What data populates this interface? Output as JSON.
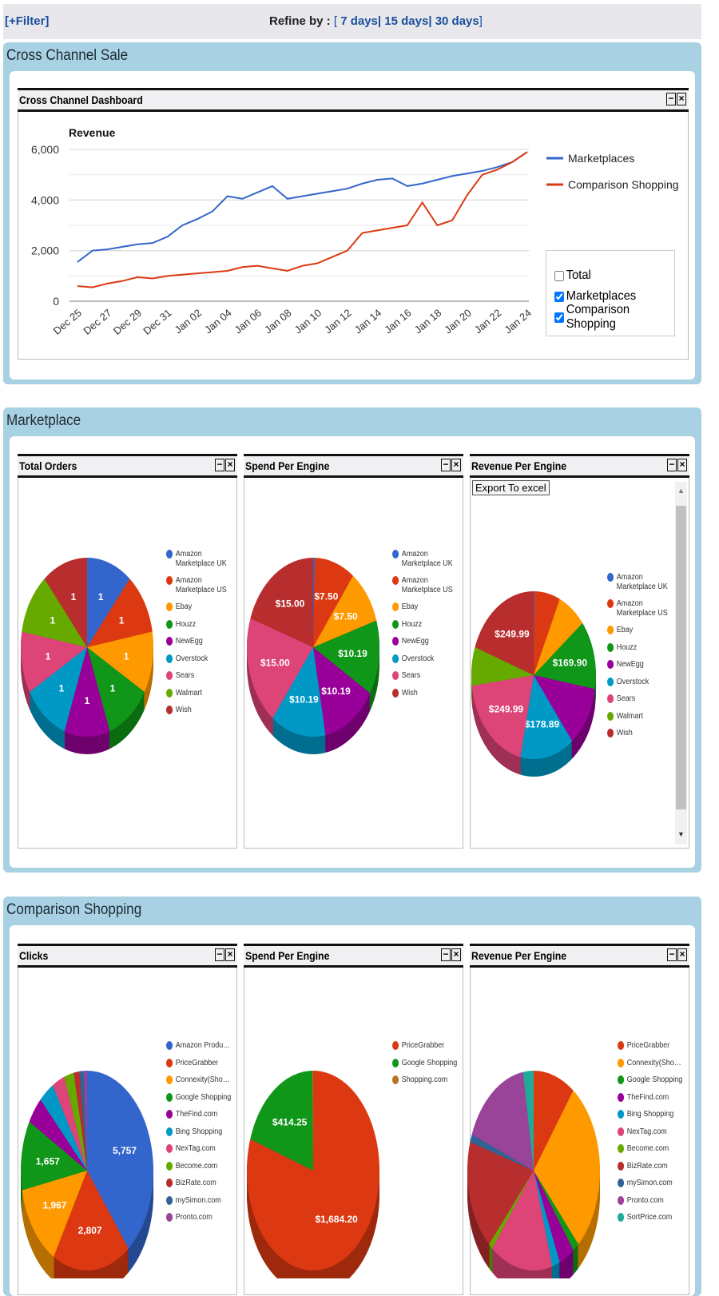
{
  "topbar": {
    "filter_label": "[+Filter]",
    "refine_label": "Refine by :",
    "bracket_open": "[",
    "bracket_close": "]",
    "sep": "|",
    "options": [
      "7 days",
      "15 days",
      "30 days"
    ]
  },
  "sections": {
    "cross_channel": {
      "title": "Cross Channel Sale",
      "widget_title": "Cross Channel Dashboard"
    },
    "marketplace": {
      "title": "Marketplace",
      "widgets": [
        "Total Orders",
        "Spend Per Engine",
        "Revenue Per Engine"
      ],
      "export_label": "Export To excel"
    },
    "comparison": {
      "title": "Comparison Shopping",
      "widgets": [
        "Clicks",
        "Spend Per Engine",
        "Revenue Per Engine"
      ]
    }
  },
  "widget_buttons": {
    "minimize": "−",
    "close": "×"
  },
  "line_toggles": [
    {
      "label": "Total",
      "checked": false
    },
    {
      "label": "Marketplaces",
      "checked": true
    },
    {
      "label": "Comparison Shopping",
      "checked": true
    }
  ],
  "chart_data": [
    {
      "type": "line",
      "title": "Revenue",
      "ylabel": "",
      "ylim": [
        0,
        6000
      ],
      "yticks": [
        "0",
        "2,000",
        "4,000",
        "6,000"
      ],
      "xticks": [
        "Dec 25",
        "Dec 27",
        "Dec 29",
        "Dec 31",
        "Jan 02",
        "Jan 04",
        "Jan 06",
        "Jan 08",
        "Jan 10",
        "Jan 12",
        "Jan 14",
        "Jan 16",
        "Jan 18",
        "Jan 20",
        "Jan 22",
        "Jan 24"
      ],
      "x": [
        "Dec 25",
        "Dec 26",
        "Dec 27",
        "Dec 28",
        "Dec 29",
        "Dec 30",
        "Dec 31",
        "Jan 01",
        "Jan 02",
        "Jan 03",
        "Jan 04",
        "Jan 05",
        "Jan 06",
        "Jan 07",
        "Jan 08",
        "Jan 09",
        "Jan 10",
        "Jan 11",
        "Jan 12",
        "Jan 13",
        "Jan 14",
        "Jan 15",
        "Jan 16",
        "Jan 17",
        "Jan 18",
        "Jan 19",
        "Jan 20",
        "Jan 21",
        "Jan 22",
        "Jan 23",
        "Jan 24"
      ],
      "legend_position": "right",
      "grid": true,
      "series": [
        {
          "name": "Marketplaces",
          "color": "#3366cc",
          "values": [
            1550,
            2000,
            2050,
            2150,
            2250,
            2300,
            2550,
            3000,
            3250,
            3550,
            4150,
            4050,
            4300,
            4550,
            4050,
            4150,
            4250,
            4350,
            4450,
            4650,
            4800,
            4850,
            4550,
            4650,
            4800,
            4950,
            5050,
            5150,
            5300,
            5500,
            5900
          ]
        },
        {
          "name": "Comparison Shopping",
          "color": "#dc3912",
          "values": [
            600,
            550,
            700,
            800,
            950,
            900,
            1000,
            1050,
            1100,
            1150,
            1200,
            1350,
            1400,
            1300,
            1200,
            1400,
            1500,
            1750,
            2000,
            2700,
            2800,
            2900,
            3000,
            3900,
            3000,
            3200,
            4200,
            5000,
            5200,
            5500,
            5900
          ]
        }
      ]
    },
    {
      "type": "pie",
      "title": "Total Orders",
      "slices": [
        {
          "name": "Amazon Marketplace UK",
          "value": 1,
          "color": "#3366cc",
          "label": "1"
        },
        {
          "name": "Amazon Marketplace US",
          "value": 1,
          "color": "#dc3912",
          "label": "1"
        },
        {
          "name": "Ebay",
          "value": 1,
          "color": "#ff9900",
          "label": "1"
        },
        {
          "name": "Houzz",
          "value": 1,
          "color": "#109618",
          "label": "1"
        },
        {
          "name": "NewEgg",
          "value": 1,
          "color": "#990099",
          "label": "1"
        },
        {
          "name": "Overstock",
          "value": 1,
          "color": "#0099c6",
          "label": "1"
        },
        {
          "name": "Sears",
          "value": 1,
          "color": "#dd4477",
          "label": "1"
        },
        {
          "name": "Walmart",
          "value": 1,
          "color": "#66aa00",
          "label": "1"
        },
        {
          "name": "Wish",
          "value": 1,
          "color": "#b82e2e",
          "label": "1"
        }
      ]
    },
    {
      "type": "pie",
      "title": "Spend Per Engine",
      "slices": [
        {
          "name": "Amazon Marketplace UK",
          "value": 0.3,
          "color": "#3366cc",
          "label": ""
        },
        {
          "name": "Amazon Marketplace US",
          "value": 7.5,
          "color": "#dc3912",
          "label": "$7.50"
        },
        {
          "name": "Ebay",
          "value": 7.5,
          "color": "#ff9900",
          "label": "$7.50"
        },
        {
          "name": "Houzz",
          "value": 10.19,
          "color": "#109618",
          "label": "$10.19"
        },
        {
          "name": "NewEgg",
          "value": 10.19,
          "color": "#990099",
          "label": "$10.19"
        },
        {
          "name": "Overstock",
          "value": 10.19,
          "color": "#0099c6",
          "label": "$10.19"
        },
        {
          "name": "Sears",
          "value": 15,
          "color": "#dd4477",
          "label": "$15.00"
        },
        {
          "name": "Wish",
          "value": 15,
          "color": "#b82e2e",
          "label": "$15.00"
        }
      ]
    },
    {
      "type": "pie",
      "title": "Revenue Per Engine",
      "slices": [
        {
          "name": "Amazon Marketplace UK",
          "value": 3,
          "color": "#3366cc",
          "label": ""
        },
        {
          "name": "Amazon Marketplace US",
          "value": 85,
          "color": "#dc3912",
          "label": ""
        },
        {
          "name": "Ebay",
          "value": 95,
          "color": "#ff9900",
          "label": ""
        },
        {
          "name": "Houzz",
          "value": 169.9,
          "color": "#109618",
          "label": "$169.90"
        },
        {
          "name": "NewEgg",
          "value": 150,
          "color": "#990099",
          "label": ""
        },
        {
          "name": "Overstock",
          "value": 178.89,
          "color": "#0099c6",
          "label": "$178.89"
        },
        {
          "name": "Sears",
          "value": 249.99,
          "color": "#dd4477",
          "label": "$249.99"
        },
        {
          "name": "Walmart",
          "value": 95,
          "color": "#66aa00",
          "label": ""
        },
        {
          "name": "Wish",
          "value": 249.99,
          "color": "#b82e2e",
          "label": "$249.99"
        }
      ]
    },
    {
      "type": "pie",
      "title": "Clicks",
      "slices": [
        {
          "name": "Amazon Product Ads",
          "value": 5757,
          "color": "#3366cc",
          "label": "5,757"
        },
        {
          "name": "PriceGrabber",
          "value": 2807,
          "color": "#dc3912",
          "label": "2,807"
        },
        {
          "name": "Connexity(Shopzilla)",
          "value": 1967,
          "color": "#ff9900",
          "label": "1,967"
        },
        {
          "name": "Google Shopping",
          "value": 1657,
          "color": "#109618",
          "label": "1,657"
        },
        {
          "name": "TheFind.com",
          "value": 650,
          "color": "#990099",
          "label": ""
        },
        {
          "name": "Bing Shopping",
          "value": 550,
          "color": "#0099c6",
          "label": ""
        },
        {
          "name": "NexTag.com",
          "value": 450,
          "color": "#dd4477",
          "label": ""
        },
        {
          "name": "Become.com",
          "value": 350,
          "color": "#66aa00",
          "label": ""
        },
        {
          "name": "BizRate.com",
          "value": 200,
          "color": "#b82e2e",
          "label": ""
        },
        {
          "name": "mySimon.com",
          "value": 150,
          "color": "#316395",
          "label": ""
        },
        {
          "name": "Pronto.com",
          "value": 120,
          "color": "#994499",
          "label": ""
        }
      ]
    },
    {
      "type": "pie",
      "title": "Spend Per Engine",
      "slices": [
        {
          "name": "PriceGrabber",
          "value": 1684.2,
          "color": "#dc3912",
          "label": "$1,684.20"
        },
        {
          "name": "Google Shopping",
          "value": 414.25,
          "color": "#109618",
          "label": "$414.25"
        },
        {
          "name": "Shopping.com",
          "value": 4,
          "color": "#b77322",
          "label": ""
        }
      ]
    },
    {
      "type": "pie",
      "title": "Revenue Per Engine",
      "slices": [
        {
          "name": "PriceGrabber",
          "value": 8,
          "color": "#dc3912",
          "label": ""
        },
        {
          "name": "Connexity(Shopzilla)",
          "value": 22,
          "color": "#ff9900",
          "label": ""
        },
        {
          "name": "Google Shopping",
          "value": 1.2,
          "color": "#109618",
          "label": ""
        },
        {
          "name": "TheFind.com",
          "value": 3,
          "color": "#990099",
          "label": ""
        },
        {
          "name": "Bing Shopping",
          "value": 1.5,
          "color": "#0099c6",
          "label": ""
        },
        {
          "name": "NexTag.com",
          "value": 12,
          "color": "#dd4477",
          "label": ""
        },
        {
          "name": "Become.com",
          "value": 0.8,
          "color": "#66aa00",
          "label": ""
        },
        {
          "name": "BizRate.com",
          "value": 14,
          "color": "#b82e2e",
          "label": ""
        },
        {
          "name": "mySimon.com",
          "value": 1,
          "color": "#316395",
          "label": ""
        },
        {
          "name": "Pronto.com",
          "value": 13,
          "color": "#994499",
          "label": ""
        },
        {
          "name": "SortPrice.com",
          "value": 2,
          "color": "#22aa99",
          "label": ""
        }
      ]
    }
  ]
}
